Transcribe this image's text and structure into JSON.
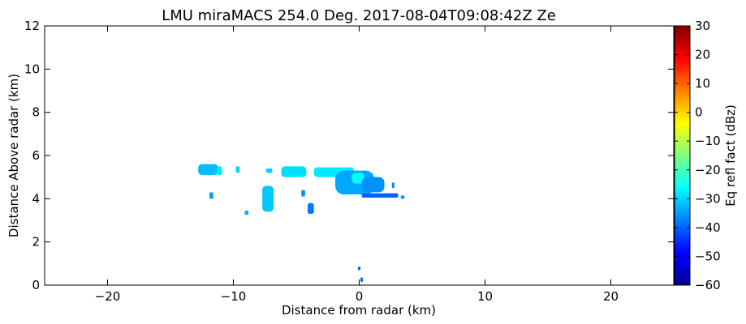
{
  "chart_data": {
    "type": "heatmap",
    "title": "LMU miraMACS 254.0 Deg. 2017-08-04T09:08:42Z  Ze",
    "xlabel": "Distance from radar (km)",
    "ylabel": "Distance Above radar  (km)",
    "xlim": [
      -25,
      25
    ],
    "ylim": [
      0,
      12
    ],
    "x_ticks": [
      "−20",
      "−10",
      "0",
      "10",
      "20"
    ],
    "x_tick_values": [
      -20,
      -10,
      0,
      10,
      20
    ],
    "y_ticks": [
      "0",
      "2",
      "4",
      "6",
      "8",
      "10",
      "12"
    ],
    "y_tick_values": [
      0,
      2,
      4,
      6,
      8,
      10,
      12
    ],
    "grid": false,
    "colorbar": {
      "label": "Eq refl fact (dBz)",
      "range": [
        -60,
        30
      ],
      "colormap": "jet",
      "ticks": [
        "−60",
        "−50",
        "−40",
        "−30",
        "−20",
        "−10",
        "0",
        "10",
        "20",
        "30"
      ],
      "tick_values": [
        -60,
        -50,
        -40,
        -30,
        -20,
        -10,
        0,
        10,
        20,
        30
      ]
    },
    "echo_regions": [
      {
        "x0": -12.8,
        "x1": -11.2,
        "y0": 5.1,
        "y1": 5.6,
        "dbz": -32
      },
      {
        "x0": -11.3,
        "x1": -10.9,
        "y0": 5.1,
        "y1": 5.5,
        "dbz": -28
      },
      {
        "x0": -11.9,
        "x1": -11.6,
        "y0": 4.0,
        "y1": 4.3,
        "dbz": -35
      },
      {
        "x0": -9.8,
        "x1": -9.5,
        "y0": 5.2,
        "y1": 5.5,
        "dbz": -30
      },
      {
        "x0": -9.1,
        "x1": -8.8,
        "y0": 3.25,
        "y1": 3.45,
        "dbz": -33
      },
      {
        "x0": -7.4,
        "x1": -6.9,
        "y0": 5.2,
        "y1": 5.4,
        "dbz": -30
      },
      {
        "x0": -7.7,
        "x1": -6.8,
        "y0": 3.4,
        "y1": 4.6,
        "dbz": -31
      },
      {
        "x0": -6.2,
        "x1": -4.2,
        "y0": 5.0,
        "y1": 5.5,
        "dbz": -29
      },
      {
        "x0": -4.6,
        "x1": -4.3,
        "y0": 4.1,
        "y1": 4.4,
        "dbz": -36
      },
      {
        "x0": -4.1,
        "x1": -3.6,
        "y0": 3.3,
        "y1": 3.8,
        "dbz": -38
      },
      {
        "x0": -3.6,
        "x1": -0.4,
        "y0": 5.0,
        "y1": 5.45,
        "dbz": -28
      },
      {
        "x0": -1.9,
        "x1": 1.2,
        "y0": 4.2,
        "y1": 5.3,
        "dbz": -34
      },
      {
        "x0": -0.6,
        "x1": 0.4,
        "y0": 4.7,
        "y1": 5.2,
        "dbz": -26
      },
      {
        "x0": 0.2,
        "x1": 2.0,
        "y0": 4.3,
        "y1": 5.0,
        "dbz": -36
      },
      {
        "x0": 0.2,
        "x1": 3.1,
        "y0": 4.05,
        "y1": 4.25,
        "dbz": -40
      },
      {
        "x0": 2.6,
        "x1": 2.8,
        "y0": 4.5,
        "y1": 4.75,
        "dbz": -37
      },
      {
        "x0": 3.3,
        "x1": 3.6,
        "y0": 4.0,
        "y1": 4.15,
        "dbz": -36
      },
      {
        "x0": -0.1,
        "x1": 0.1,
        "y0": 0.7,
        "y1": 0.85,
        "dbz": -42
      },
      {
        "x0": 0.1,
        "x1": 0.3,
        "y0": 0.15,
        "y1": 0.35,
        "dbz": -40
      }
    ]
  }
}
